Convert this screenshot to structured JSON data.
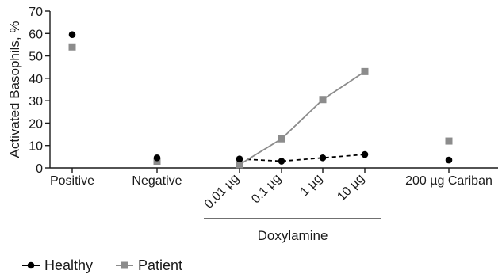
{
  "chart_data": {
    "type": "scatter",
    "ylabel": "Activated Basophils, %",
    "ylim": [
      0,
      70
    ],
    "yticks": [
      0,
      10,
      20,
      30,
      40,
      50,
      60,
      70
    ],
    "categories": [
      "Positive",
      "Negative",
      "0.01 µg",
      "0.1 µg",
      "1 µg",
      "10 µg",
      "200 µg Cariban"
    ],
    "group_label": "Doxylamine",
    "group_categories": [
      "0.01 µg",
      "0.1 µg",
      "1 µg",
      "10 µg"
    ],
    "legend_position": "bottom-left",
    "series": [
      {
        "name": "Healthy",
        "marker": "circle",
        "color": "#000000",
        "line_style": "dashed",
        "values": [
          59.5,
          4.5,
          4.0,
          3.0,
          4.5,
          6.0,
          3.5
        ]
      },
      {
        "name": "Patient",
        "marker": "square",
        "color": "#8c8c8c",
        "line_style": "solid",
        "values": [
          54.0,
          3.0,
          1.5,
          13.0,
          30.5,
          43.0,
          12.0
        ]
      }
    ]
  }
}
